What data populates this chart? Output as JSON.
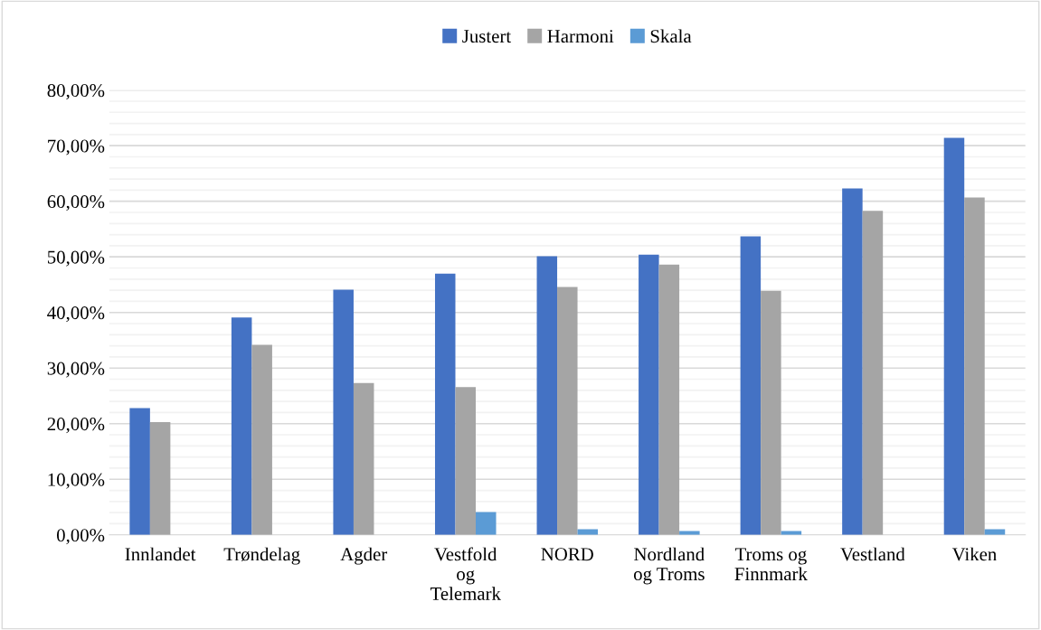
{
  "chart_data": {
    "type": "bar",
    "categories": [
      "Innlandet",
      "Trøndelag",
      "Agder",
      "Vestfold\nog\nTelemark",
      "NORD",
      "Nordland\nog Troms",
      "Troms og\nFinnmark",
      "Vestland",
      "Viken"
    ],
    "series": [
      {
        "name": "Justert",
        "color": "#4472c4",
        "values": [
          22.8,
          39.1,
          44.1,
          47.0,
          50.1,
          50.4,
          53.7,
          62.3,
          71.4
        ]
      },
      {
        "name": "Harmoni",
        "color": "#a5a5a5",
        "values": [
          20.3,
          34.2,
          27.3,
          26.6,
          44.6,
          48.6,
          43.9,
          58.3,
          60.7
        ]
      },
      {
        "name": "Skala",
        "color": "#5b9bd5",
        "values": [
          0,
          0,
          0,
          4.1,
          1.0,
          0.7,
          0.7,
          0,
          1.0
        ]
      }
    ],
    "ylim": [
      0,
      80
    ],
    "yticks": [
      {
        "value": 0,
        "label": "0,00%"
      },
      {
        "value": 2,
        "label": null
      },
      {
        "value": 4,
        "label": null
      },
      {
        "value": 6,
        "label": null
      },
      {
        "value": 8,
        "label": null
      },
      {
        "value": 10,
        "label": "10,00%"
      },
      {
        "value": 12,
        "label": null
      },
      {
        "value": 14,
        "label": null
      },
      {
        "value": 16,
        "label": null
      },
      {
        "value": 18,
        "label": null
      },
      {
        "value": 20,
        "label": "20,00%"
      },
      {
        "value": 22,
        "label": null
      },
      {
        "value": 24,
        "label": null
      },
      {
        "value": 26,
        "label": null
      },
      {
        "value": 28,
        "label": null
      },
      {
        "value": 30,
        "label": "30,00%"
      },
      {
        "value": 32,
        "label": null
      },
      {
        "value": 34,
        "label": null
      },
      {
        "value": 36,
        "label": null
      },
      {
        "value": 38,
        "label": null
      },
      {
        "value": 40,
        "label": "40,00%"
      },
      {
        "value": 42,
        "label": null
      },
      {
        "value": 44,
        "label": null
      },
      {
        "value": 46,
        "label": null
      },
      {
        "value": 48,
        "label": null
      },
      {
        "value": 50,
        "label": "50,00%"
      },
      {
        "value": 52,
        "label": null
      },
      {
        "value": 54,
        "label": null
      },
      {
        "value": 56,
        "label": null
      },
      {
        "value": 58,
        "label": null
      },
      {
        "value": 60,
        "label": "60,00%"
      },
      {
        "value": 62,
        "label": null
      },
      {
        "value": 64,
        "label": null
      },
      {
        "value": 66,
        "label": null
      },
      {
        "value": 68,
        "label": null
      },
      {
        "value": 70,
        "label": "70,00%"
      },
      {
        "value": 72,
        "label": null
      },
      {
        "value": 74,
        "label": null
      },
      {
        "value": 76,
        "label": null
      },
      {
        "value": 78,
        "label": null
      },
      {
        "value": 80,
        "label": "80,00%"
      }
    ],
    "grid": "y",
    "legend": "top"
  }
}
